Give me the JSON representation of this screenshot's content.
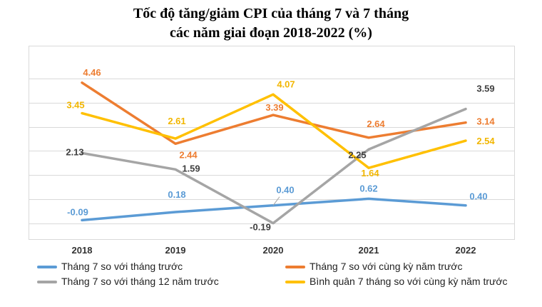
{
  "title": {
    "line1": "Tốc độ tăng/giảm CPI của tháng 7 và 7 tháng",
    "line2": "các năm giai đoạn 2018-2022 (%)"
  },
  "chart_data": {
    "type": "line",
    "categories": [
      "2018",
      "2019",
      "2020",
      "2021",
      "2022"
    ],
    "ylim": [
      -0.6,
      5.4
    ],
    "grid": true,
    "legend_position": "bottom",
    "series": [
      {
        "name": "Tháng 7 so với tháng trước",
        "color": "#5b9bd5",
        "values": [
          -0.09,
          0.18,
          0.4,
          0.62,
          0.4
        ],
        "labels": [
          "-0.09",
          "0.18",
          "0.40",
          "0.62",
          "0.40"
        ]
      },
      {
        "name": "Tháng 7 so với cùng kỳ năm trước",
        "color": "#ed7d31",
        "values": [
          4.46,
          2.44,
          3.39,
          2.64,
          3.14
        ],
        "labels": [
          "4.46",
          "2.44",
          "3.39",
          "2.64",
          "3.14"
        ]
      },
      {
        "name": "Tháng 7 so với tháng 12 năm trước",
        "color": "#a5a5a5",
        "values": [
          2.13,
          1.59,
          -0.19,
          2.25,
          3.59
        ],
        "labels": [
          "2.13",
          "1.59",
          "-0.19",
          "2.25",
          "3.59"
        ]
      },
      {
        "name": "Bình quân 7 tháng so với cùng kỳ năm trước",
        "color": "#ffc000",
        "values": [
          3.45,
          2.61,
          4.07,
          1.64,
          2.54
        ],
        "labels": [
          "3.45",
          "2.61",
          "4.07",
          "1.64",
          "2.54"
        ]
      }
    ]
  }
}
